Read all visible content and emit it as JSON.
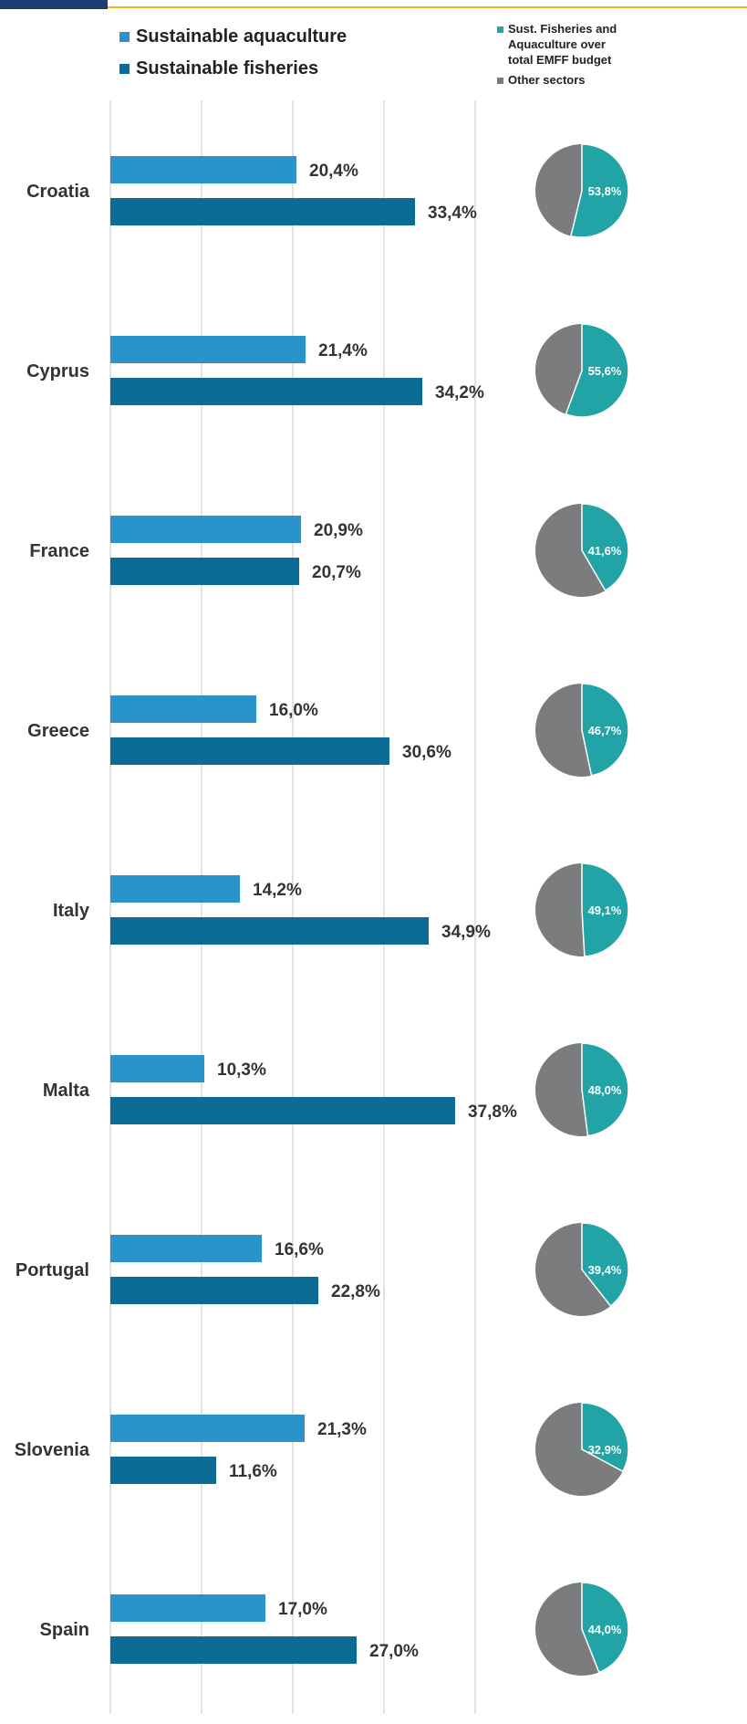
{
  "colors": {
    "aquaculture": "#2a93c9",
    "fisheries": "#0b6c96",
    "pie_share": "#22a3a6",
    "pie_other": "#7b7c7e",
    "grid": "#d9d9d9",
    "top_dark": "#1f3b73",
    "top_gold": "#f2b51b"
  },
  "legend": {
    "bars": [
      {
        "label": "Sustainable aquaculture",
        "color": "#2a93c9"
      },
      {
        "label": "Sustainable fisheries",
        "color": "#0b6c96"
      }
    ],
    "pie": [
      {
        "label_lines": [
          "Sust. Fisheries and",
          "Aquaculture over",
          "total EMFF budget"
        ],
        "color": "#22a3a6"
      },
      {
        "label_lines": [
          "Other sectors"
        ],
        "color": "#7b7c7e"
      }
    ]
  },
  "chart_data": [
    {
      "type": "bar",
      "orientation": "horizontal",
      "categories": [
        "Croatia",
        "Cyprus",
        "France",
        "Greece",
        "Italy",
        "Malta",
        "Portugal",
        "Slovenia",
        "Spain"
      ],
      "series": [
        {
          "name": "Sustainable aquaculture",
          "values": [
            20.4,
            21.4,
            20.9,
            16.0,
            14.2,
            10.3,
            16.6,
            21.3,
            17.0
          ],
          "labels": [
            "20,4%",
            "21,4%",
            "20,9%",
            "16,0%",
            "14,2%",
            "10,3%",
            "16,6%",
            "21,3%",
            "17,0%"
          ]
        },
        {
          "name": "Sustainable fisheries",
          "values": [
            33.4,
            34.2,
            20.7,
            30.6,
            34.9,
            37.8,
            22.8,
            11.6,
            27.0
          ],
          "labels": [
            "33,4%",
            "34,2%",
            "20,7%",
            "30,6%",
            "34,9%",
            "37,8%",
            "22,8%",
            "11,6%",
            "27,0%"
          ]
        }
      ],
      "xlim": [
        0,
        40
      ],
      "grid": true,
      "legend": "top"
    },
    {
      "type": "pie",
      "categories": [
        "Croatia",
        "Cyprus",
        "France",
        "Greece",
        "Italy",
        "Malta",
        "Portugal",
        "Slovenia",
        "Spain"
      ],
      "slices": [
        "Sust. Fisheries and Aquaculture over total EMFF budget",
        "Other sectors"
      ],
      "values": [
        53.8,
        55.6,
        41.6,
        46.7,
        49.1,
        48.0,
        39.4,
        32.9,
        44.0
      ],
      "labels": [
        "53,8%",
        "55,6%",
        "41,6%",
        "46,7%",
        "49,1%",
        "48,0%",
        "39,4%",
        "32,9%",
        "44,0%"
      ],
      "legend": "top-right"
    }
  ]
}
